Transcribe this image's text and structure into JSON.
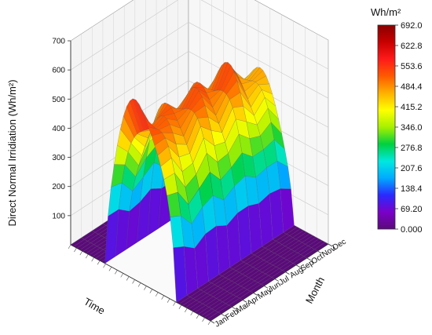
{
  "chart_data": {
    "type": "surface3d",
    "zlabel": "Direct Normal Irridiation (Wh/m²)",
    "xlabel": "Time",
    "ylabel": "Month",
    "zlim": [
      0,
      700
    ],
    "z_ticks": [
      "100",
      "200",
      "300",
      "400",
      "500",
      "600",
      "700"
    ],
    "months": [
      "Jan",
      "Feb",
      "Mar",
      "Apr",
      "May",
      "Jun",
      "Jul",
      "Aug",
      "Sep",
      "Oct",
      "Nov",
      "Dec"
    ],
    "time_range": [
      0,
      24
    ],
    "daylight_hours": [
      6,
      18
    ],
    "peak_by_month": [
      650,
      580,
      530,
      560,
      575,
      555,
      560,
      565,
      570,
      540,
      520,
      480
    ],
    "colorbar": {
      "title": "Wh/m²",
      "min": 0.0,
      "max": 692.0,
      "tick_labels": [
        "692.0",
        "622.8",
        "553.6",
        "484.4",
        "415.2",
        "346.0",
        "276.8",
        "207.6",
        "138.4",
        "69.20",
        "0.000"
      ],
      "colors": [
        "#5a0a7a",
        "#7a00c8",
        "#2a2aff",
        "#00aaff",
        "#00e8e0",
        "#00d040",
        "#a8f000",
        "#ffff00",
        "#ffb000",
        "#ff5a00",
        "#ff1a1a",
        "#c80000",
        "#8a0000"
      ]
    }
  }
}
